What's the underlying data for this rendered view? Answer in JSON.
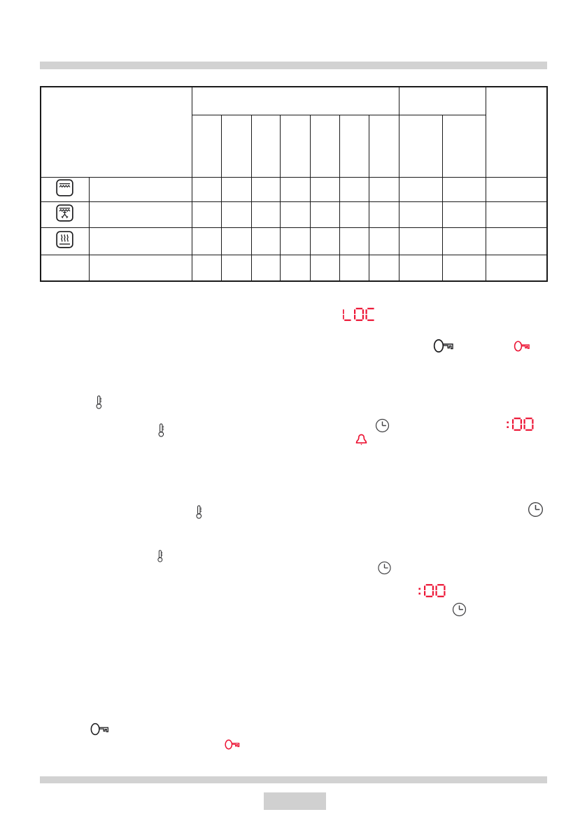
{
  "page": {
    "kind": "appliance-manual-page",
    "visible_text": "none"
  },
  "colors": {
    "accent_red": "#ec1434",
    "icon_black": "#1c1c1e",
    "icon_gray": "#414143",
    "bar_gray": "#d2d2d2",
    "box_gray": "#d0d0d0",
    "table_border": "#1a1a1a"
  },
  "table": {
    "description": "empty oven-functions table",
    "header_group_1_span": 7,
    "header_group_2_span": 2,
    "column_count": 12,
    "rows": [
      {
        "icon": "oven-grill-icon"
      },
      {
        "icon": "oven-grill-fan-icon"
      },
      {
        "icon": "oven-bottom-heat-icon"
      },
      {
        "icon": "none"
      }
    ]
  },
  "displays": {
    "lock_text": "LOC",
    "minutes_1": ":00",
    "minutes_2": ":00"
  },
  "icons": {
    "key_black": "key-icon (child-lock, black)",
    "key_red": "key-icon (child-lock, red/active)",
    "thermometer": "thermometer-icon",
    "clock": "clock-icon",
    "bell": "bell-icon (minute-minder, red)"
  }
}
